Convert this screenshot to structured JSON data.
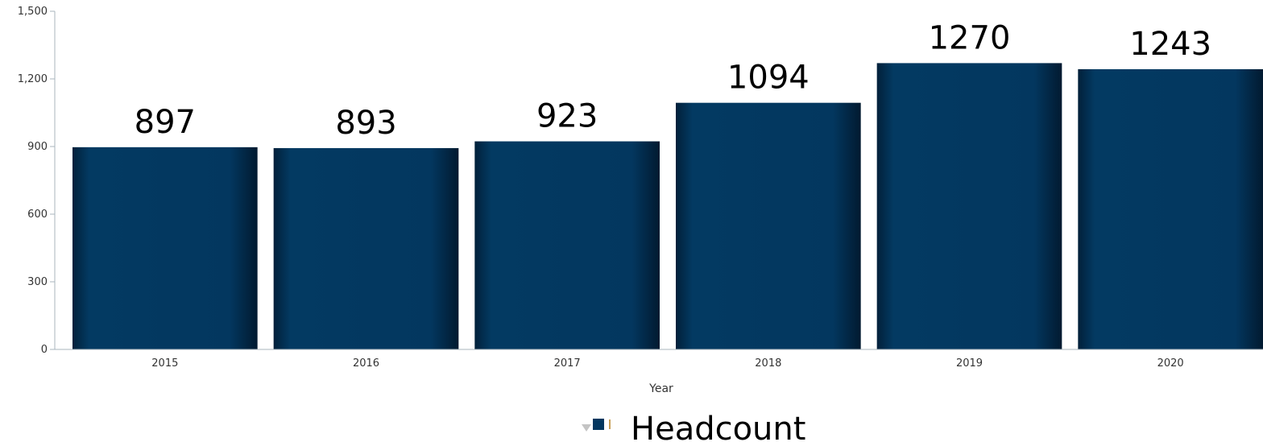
{
  "chart_data": {
    "type": "bar",
    "categories": [
      "2015",
      "2016",
      "2017",
      "2018",
      "2019",
      "2020"
    ],
    "values": [
      897,
      893,
      923,
      1094,
      1270,
      1243
    ],
    "data_labels": [
      "897",
      "893",
      "923",
      "1094",
      "1270",
      "1243"
    ],
    "title": "",
    "xlabel": "Year",
    "ylabel": "",
    "ylim": [
      0,
      1500
    ],
    "y_ticks": [
      0,
      300,
      600,
      900,
      1200,
      1500
    ],
    "y_tick_labels": [
      "0",
      "300",
      "600",
      "900",
      "1,200",
      "1,500"
    ],
    "grid": false,
    "legend": {
      "position": "bottom",
      "entries": [
        "Headcount"
      ]
    },
    "series": [
      {
        "name": "Headcount",
        "color": "#03375f",
        "values": [
          897,
          893,
          923,
          1094,
          1270,
          1243
        ]
      }
    ]
  }
}
